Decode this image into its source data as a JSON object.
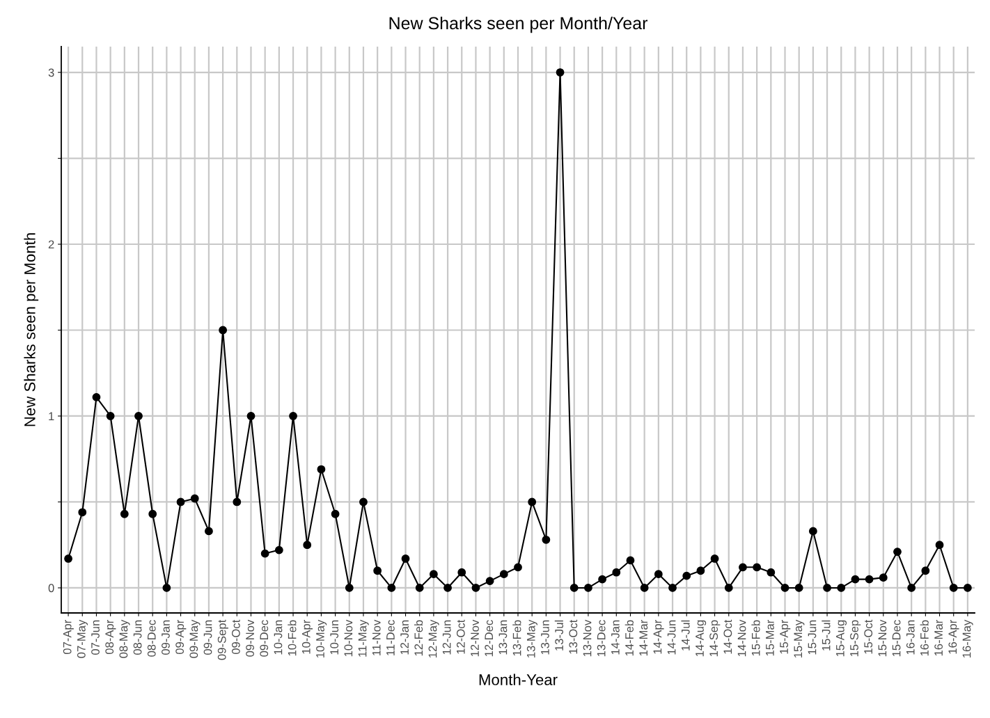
{
  "chart_data": {
    "type": "line",
    "title": "New Sharks seen per Month/Year",
    "xlabel": "Month-Year",
    "ylabel": "New Sharks seen per Month",
    "categories": [
      "07-Apr",
      "07-May",
      "07-Jun",
      "08-Apr",
      "08-May",
      "08-Jun",
      "08-Dec",
      "09-Jan",
      "09-Apr",
      "09-May",
      "09-Jun",
      "09-Sept",
      "09-Oct",
      "09-Nov",
      "09-Dec",
      "10-Jan",
      "10-Feb",
      "10-Apr",
      "10-May",
      "10-Jun",
      "10-Nov",
      "11-May",
      "11-Nov",
      "11-Dec",
      "12-Jan",
      "12-Feb",
      "12-May",
      "12-Jun",
      "12-Oct",
      "12-Nov",
      "12-Dec",
      "13-Jan",
      "13-Feb",
      "13-May",
      "13-Jun",
      "13-Jul",
      "13-Oct",
      "13-Nov",
      "13-Dec",
      "14-Jan",
      "14-Feb",
      "14-Mar",
      "14-Apr",
      "14-Jun",
      "14-Jul",
      "14-Aug",
      "14-Sep",
      "14-Oct",
      "14-Nov",
      "15-Feb",
      "15-Mar",
      "15-Apr",
      "15-May",
      "15-Jun",
      "15-Jul",
      "15-Aug",
      "15-Sep",
      "15-Oct",
      "15-Nov",
      "15-Dec",
      "16-Jan",
      "16-Feb",
      "16-Mar",
      "16-Apr",
      "16-May"
    ],
    "series": [
      {
        "color": "#000000",
        "values": [
          0.17,
          0.44,
          1.11,
          1,
          0.43,
          1,
          0.43,
          0,
          0.5,
          0.52,
          0.33,
          1.5,
          0.5,
          1,
          0.2,
          0.22,
          1,
          0.25,
          0.69,
          0.43,
          0,
          0.5,
          0.1,
          0,
          0.17,
          0,
          0.08,
          0,
          0.09,
          0,
          0.04,
          0.08,
          0.12,
          0.5,
          0.28,
          3,
          0,
          0,
          0.05,
          0.09,
          0.16,
          0,
          0.08,
          0,
          0.07,
          0.1,
          0.17,
          0,
          0.12,
          0.12,
          0.09,
          0,
          0,
          0.33,
          0,
          0,
          0.05,
          0.05,
          0.06,
          0.21,
          0,
          0.1,
          0.25,
          0,
          0
        ]
      }
    ],
    "ylim": [
      -0.146,
      3.15
    ],
    "yticks": [
      0,
      {
        "value": 0.5,
        "label": null
      },
      1,
      {
        "value": 1.5,
        "label": null
      },
      2,
      {
        "value": 2.5,
        "label": null
      },
      3
    ],
    "grid": true,
    "marker": "circle",
    "line_style": "solid"
  }
}
